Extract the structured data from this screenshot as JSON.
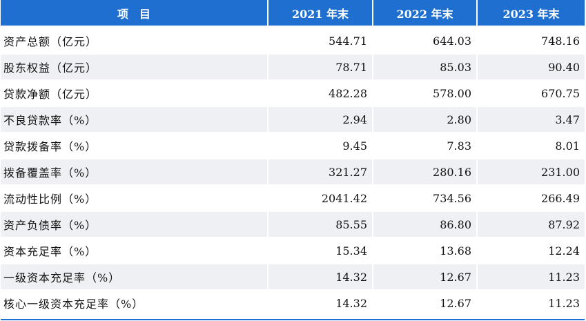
{
  "header": {
    "item": "项　目",
    "y2021": "2021 年末",
    "y2022": "2022 年末",
    "y2023": "2023 年末"
  },
  "rows": [
    {
      "label": "资产总额（亿元）",
      "v2021": "544.71",
      "v2022": "644.03",
      "v2023": "748.16"
    },
    {
      "label": "股东权益（亿元）",
      "v2021": "78.71",
      "v2022": "85.03",
      "v2023": "90.40"
    },
    {
      "label": "贷款净额（亿元）",
      "v2021": "482.28",
      "v2022": "578.00",
      "v2023": "670.75"
    },
    {
      "label": "不良贷款率（%）",
      "v2021": "2.94",
      "v2022": "2.80",
      "v2023": "3.47"
    },
    {
      "label": "贷款拨备率（%）",
      "v2021": "9.45",
      "v2022": "7.83",
      "v2023": "8.01"
    },
    {
      "label": "拨备覆盖率（%）",
      "v2021": "321.27",
      "v2022": "280.16",
      "v2023": "231.00"
    },
    {
      "label": "流动性比例（%）",
      "v2021": "2041.42",
      "v2022": "734.56",
      "v2023": "266.49"
    },
    {
      "label": "资产负债率（%）",
      "v2021": "85.55",
      "v2022": "86.80",
      "v2023": "87.92"
    },
    {
      "label": "资本充足率（%）",
      "v2021": "15.34",
      "v2022": "13.68",
      "v2023": "12.24"
    },
    {
      "label": "一级资本充足率（%）",
      "v2021": "14.32",
      "v2022": "12.67",
      "v2023": "11.23"
    },
    {
      "label": "核心一级资本充足率（%）",
      "v2021": "14.32",
      "v2022": "12.67",
      "v2023": "11.23"
    }
  ],
  "colors": {
    "header_bg": "#1f6fd0",
    "header_text": "#ffffff",
    "row_alt_bg": "#eef0f3",
    "row_bg": "#ffffff"
  }
}
